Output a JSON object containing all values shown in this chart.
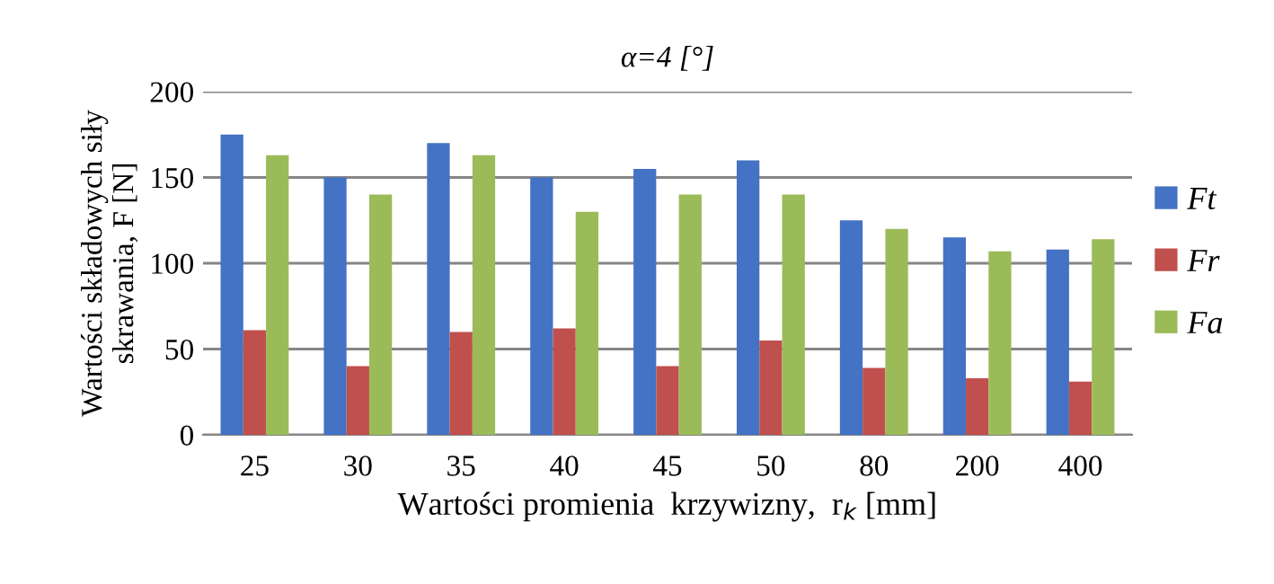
{
  "chart_data": {
    "type": "bar",
    "title": "α=4 [°]",
    "xlabel": "Wartości promienia  krzywizny,  r$_{k}$ [mm]",
    "ylabel": "Wartości składowych siły\nskrawania, F [N]",
    "categories": [
      "25",
      "30",
      "35",
      "40",
      "45",
      "50",
      "80",
      "200",
      "400"
    ],
    "series": [
      {
        "name": "Ft",
        "color": "#4472c4",
        "values": [
          175,
          150,
          170,
          150,
          155,
          160,
          125,
          115,
          108
        ]
      },
      {
        "name": "Fr",
        "color": "#c0504d",
        "values": [
          61,
          40,
          60,
          62,
          40,
          55,
          39,
          33,
          31
        ]
      },
      {
        "name": "Fa",
        "color": "#9bbb59",
        "values": [
          163,
          140,
          163,
          130,
          140,
          140,
          120,
          107,
          114
        ]
      }
    ],
    "ylim": [
      0,
      200
    ],
    "yticks": [
      0,
      50,
      100,
      150,
      200
    ],
    "grid": "y",
    "legend": "right"
  }
}
